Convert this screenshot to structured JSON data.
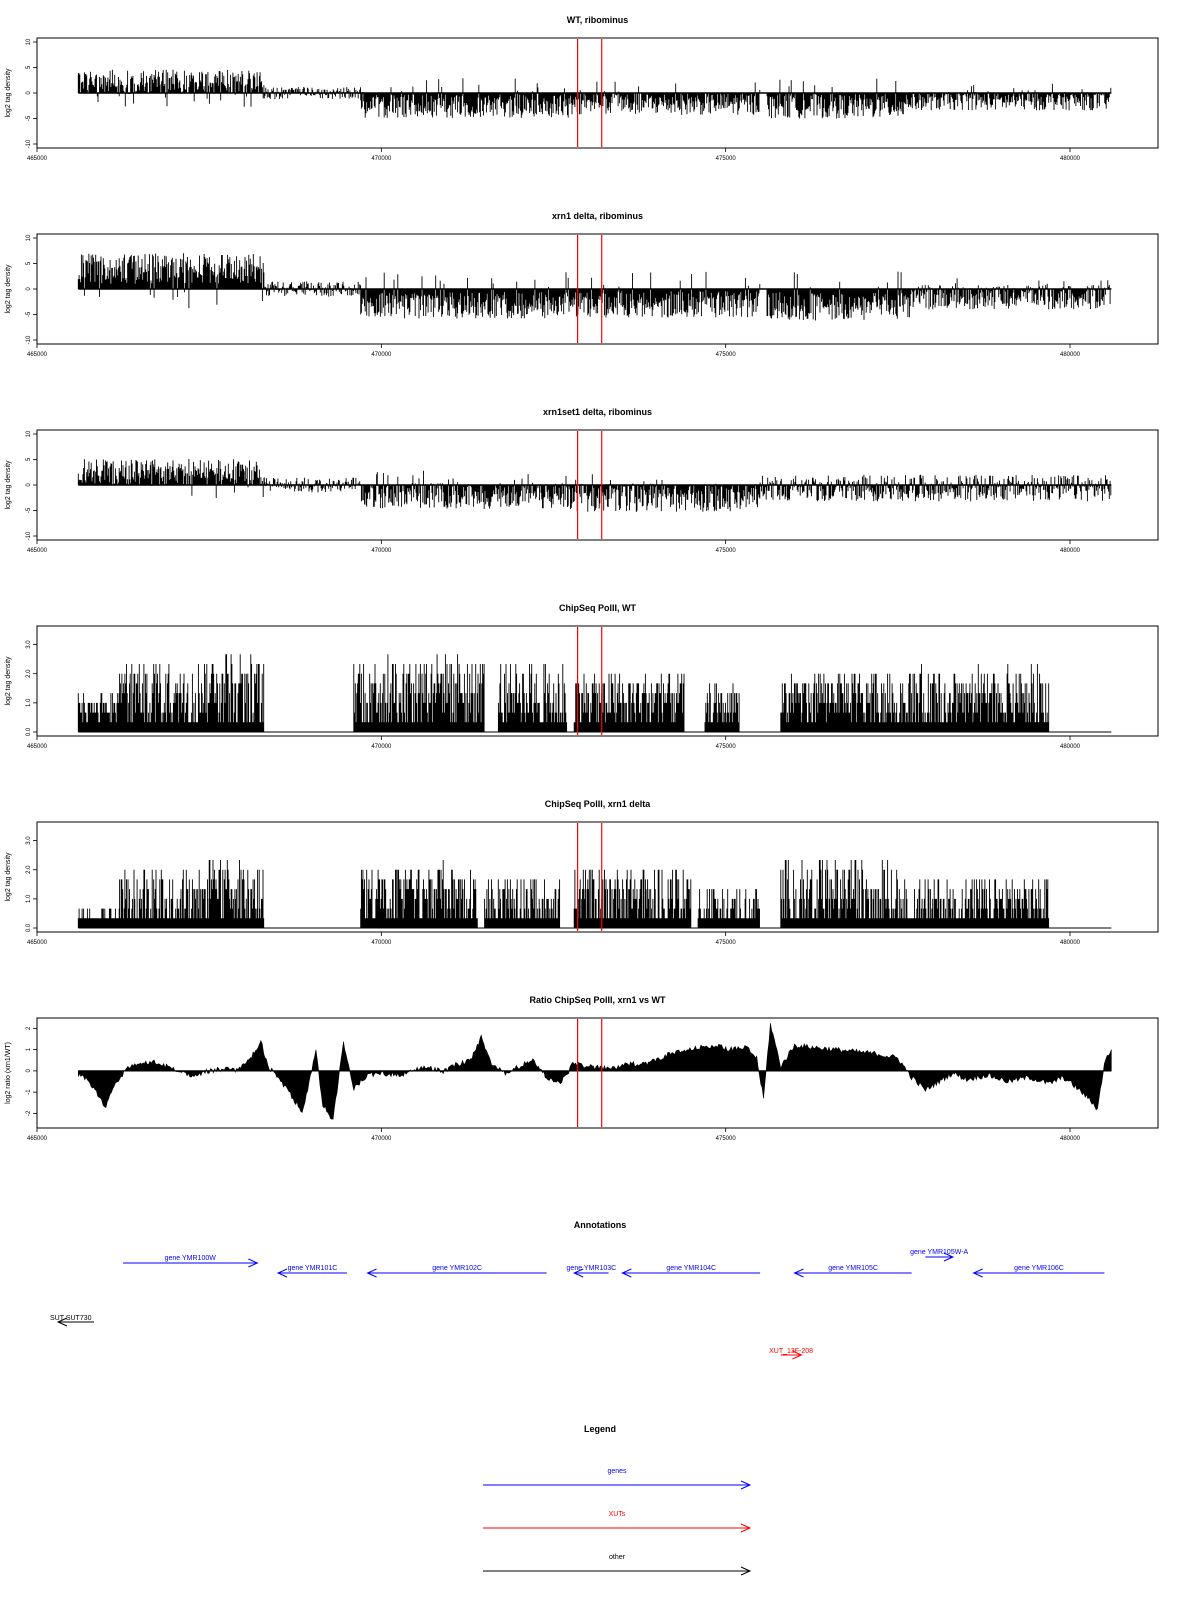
{
  "chart_data": [
    {
      "type": "bar",
      "title": "WT, ribominus",
      "ylabel": "log2 tag density",
      "xlabel": "",
      "xlim": [
        465000,
        480500
      ],
      "ylim": [
        -10,
        10
      ],
      "yticks": [
        10,
        5,
        0,
        -5,
        -10
      ],
      "xticks": [
        465000,
        470000,
        475000,
        480000
      ],
      "grid": false,
      "marker_lines": [
        472850,
        473200
      ],
      "segments": [
        {
          "start": 465600,
          "end": 468300,
          "mean": 2.2,
          "amp": 2.4
        },
        {
          "start": 468300,
          "end": 469700,
          "mean": 0.0,
          "amp": 1.2
        },
        {
          "start": 469700,
          "end": 472800,
          "mean": -2.6,
          "amp": 2.3
        },
        {
          "start": 472800,
          "end": 475500,
          "mean": -2.1,
          "amp": 2.2
        },
        {
          "start": 475600,
          "end": 477600,
          "mean": -2.6,
          "amp": 2.4
        },
        {
          "start": 477600,
          "end": 480600,
          "mean": -1.6,
          "amp": 1.8
        }
      ]
    },
    {
      "type": "bar",
      "title": "xrn1 delta, ribominus",
      "ylabel": "log2 tag density",
      "xlabel": "",
      "xlim": [
        465000,
        480500
      ],
      "ylim": [
        -10,
        10
      ],
      "yticks": [
        10,
        5,
        0,
        -5,
        -10
      ],
      "xticks": [
        465000,
        470000,
        475000,
        480000
      ],
      "grid": false,
      "marker_lines": [
        472850,
        473200
      ],
      "segments": [
        {
          "start": 465600,
          "end": 468300,
          "mean": 4.0,
          "amp": 3.0
        },
        {
          "start": 468300,
          "end": 469700,
          "mean": 0.0,
          "amp": 1.5
        },
        {
          "start": 469700,
          "end": 472800,
          "mean": -3.2,
          "amp": 2.6
        },
        {
          "start": 472800,
          "end": 475500,
          "mean": -3.0,
          "amp": 2.6
        },
        {
          "start": 475600,
          "end": 477700,
          "mean": -3.4,
          "amp": 2.8
        },
        {
          "start": 477700,
          "end": 480600,
          "mean": -1.6,
          "amp": 2.4
        }
      ]
    },
    {
      "type": "bar",
      "title": "xrn1set1 delta, ribominus",
      "ylabel": "log2 tag density",
      "xlabel": "",
      "xlim": [
        465000,
        480500
      ],
      "ylim": [
        -10,
        10
      ],
      "yticks": [
        10,
        5,
        0,
        -5,
        -10
      ],
      "xticks": [
        465000,
        470000,
        475000,
        480000
      ],
      "grid": false,
      "marker_lines": [
        472850,
        473200
      ],
      "segments": [
        {
          "start": 465600,
          "end": 468300,
          "mean": 2.5,
          "amp": 2.6
        },
        {
          "start": 468300,
          "end": 469700,
          "mean": 0.0,
          "amp": 1.5
        },
        {
          "start": 469700,
          "end": 472800,
          "mean": -2.2,
          "amp": 2.6
        },
        {
          "start": 472800,
          "end": 475500,
          "mean": -2.5,
          "amp": 2.8
        },
        {
          "start": 475500,
          "end": 480600,
          "mean": -0.6,
          "amp": 2.6
        }
      ]
    },
    {
      "type": "bar",
      "title": "ChipSeq PolII, WT",
      "ylabel": "log2 tag density",
      "xlabel": "",
      "xlim": [
        465000,
        480500
      ],
      "ylim": [
        0,
        3.5
      ],
      "yticks": [
        0.0,
        1.0,
        2.0,
        3.0
      ],
      "xticks": [
        465000,
        470000,
        475000,
        480000
      ],
      "grid": false,
      "marker_lines": [
        472850,
        473200
      ],
      "segments": [
        {
          "start": 465600,
          "end": 466200,
          "mean": 0.9,
          "amp": 0.4
        },
        {
          "start": 466200,
          "end": 467500,
          "mean": 1.5,
          "amp": 1.0
        },
        {
          "start": 467500,
          "end": 468300,
          "mean": 1.8,
          "amp": 1.0
        },
        {
          "start": 469600,
          "end": 471500,
          "mean": 1.6,
          "amp": 1.0
        },
        {
          "start": 471700,
          "end": 472700,
          "mean": 1.4,
          "amp": 1.0
        },
        {
          "start": 472800,
          "end": 474400,
          "mean": 1.2,
          "amp": 0.8
        },
        {
          "start": 474700,
          "end": 475200,
          "mean": 1.0,
          "amp": 0.6
        },
        {
          "start": 475800,
          "end": 477700,
          "mean": 1.3,
          "amp": 0.8
        },
        {
          "start": 477700,
          "end": 479700,
          "mean": 1.3,
          "amp": 0.9
        }
      ]
    },
    {
      "type": "bar",
      "title": "ChipSeq PolII, xrn1 delta",
      "ylabel": "log2 tag density",
      "xlabel": "",
      "xlim": [
        465000,
        480500
      ],
      "ylim": [
        0,
        3.5
      ],
      "yticks": [
        0.0,
        1.0,
        2.0,
        3.0
      ],
      "xticks": [
        465000,
        470000,
        475000,
        480000
      ],
      "grid": false,
      "marker_lines": [
        472850,
        473200
      ],
      "segments": [
        {
          "start": 465600,
          "end": 466200,
          "mean": 0.4,
          "amp": 0.4
        },
        {
          "start": 466200,
          "end": 467500,
          "mean": 1.1,
          "amp": 0.9
        },
        {
          "start": 467500,
          "end": 468300,
          "mean": 1.6,
          "amp": 0.9
        },
        {
          "start": 469700,
          "end": 471400,
          "mean": 1.3,
          "amp": 0.9
        },
        {
          "start": 471500,
          "end": 472600,
          "mean": 1.0,
          "amp": 0.8
        },
        {
          "start": 472800,
          "end": 474500,
          "mean": 1.2,
          "amp": 0.9
        },
        {
          "start": 474600,
          "end": 475500,
          "mean": 0.8,
          "amp": 0.6
        },
        {
          "start": 475800,
          "end": 477500,
          "mean": 1.4,
          "amp": 1.0
        },
        {
          "start": 477500,
          "end": 479700,
          "mean": 0.9,
          "amp": 0.8
        }
      ]
    },
    {
      "type": "area",
      "title": "Ratio ChipSeq PolII, xrn1 vs WT",
      "ylabel": "log2 ratio (xrn1/WT)",
      "xlabel": "",
      "xlim": [
        465000,
        480500
      ],
      "ylim": [
        -2.5,
        2.3
      ],
      "yticks": [
        2,
        1,
        0,
        -1,
        -2
      ],
      "xticks": [
        465000,
        470000,
        475000,
        480000
      ],
      "grid": false,
      "marker_lines": [
        472850,
        473200
      ],
      "points": [
        [
          465600,
          -0.2
        ],
        [
          465750,
          -0.5
        ],
        [
          465900,
          -1.2
        ],
        [
          466000,
          -1.7
        ],
        [
          466100,
          -0.8
        ],
        [
          466300,
          0.1
        ],
        [
          466500,
          0.3
        ],
        [
          466700,
          0.4
        ],
        [
          466900,
          0.2
        ],
        [
          467100,
          -0.1
        ],
        [
          467300,
          -0.2
        ],
        [
          467500,
          0.0
        ],
        [
          467700,
          0.1
        ],
        [
          467900,
          0.0
        ],
        [
          468100,
          0.6
        ],
        [
          468250,
          1.4
        ],
        [
          468350,
          0.2
        ],
        [
          468500,
          -0.3
        ],
        [
          468700,
          -1.2
        ],
        [
          468850,
          -1.9
        ],
        [
          468950,
          -0.6
        ],
        [
          469050,
          1.0
        ],
        [
          469150,
          -1.6
        ],
        [
          469300,
          -2.3
        ],
        [
          469450,
          1.3
        ],
        [
          469600,
          -0.8
        ],
        [
          469800,
          -0.2
        ],
        [
          470000,
          -0.1
        ],
        [
          470300,
          -0.2
        ],
        [
          470600,
          0.2
        ],
        [
          470900,
          0.0
        ],
        [
          471100,
          0.3
        ],
        [
          471300,
          0.5
        ],
        [
          471450,
          1.6
        ],
        [
          471600,
          0.3
        ],
        [
          471800,
          -0.1
        ],
        [
          472000,
          0.2
        ],
        [
          472200,
          0.5
        ],
        [
          472400,
          -0.3
        ],
        [
          472600,
          -0.6
        ],
        [
          472800,
          0.4
        ],
        [
          473000,
          0.2
        ],
        [
          473300,
          0.1
        ],
        [
          473600,
          0.3
        ],
        [
          473900,
          0.4
        ],
        [
          474200,
          0.8
        ],
        [
          474500,
          1.0
        ],
        [
          474800,
          1.2
        ],
        [
          475100,
          1.0
        ],
        [
          475300,
          1.1
        ],
        [
          475450,
          0.6
        ],
        [
          475550,
          -1.3
        ],
        [
          475650,
          2.2
        ],
        [
          475800,
          0.2
        ],
        [
          476000,
          1.2
        ],
        [
          476300,
          1.1
        ],
        [
          476600,
          1.0
        ],
        [
          476900,
          0.9
        ],
        [
          477200,
          0.8
        ],
        [
          477500,
          0.6
        ],
        [
          477700,
          -0.3
        ],
        [
          477900,
          -0.9
        ],
        [
          478100,
          -0.5
        ],
        [
          478300,
          -0.1
        ],
        [
          478500,
          -0.4
        ],
        [
          478800,
          -0.2
        ],
        [
          479100,
          -0.5
        ],
        [
          479400,
          -0.3
        ],
        [
          479700,
          -0.6
        ],
        [
          479900,
          -0.3
        ],
        [
          480100,
          -0.8
        ],
        [
          480300,
          -1.4
        ],
        [
          480400,
          -1.8
        ],
        [
          480500,
          0.4
        ],
        [
          480600,
          1.0
        ]
      ]
    }
  ],
  "annotations": {
    "title": "Annotations",
    "genes": [
      {
        "label": "gene YMR100W",
        "start": 466250,
        "end": 468200,
        "strand": "+"
      },
      {
        "label": "gene YMR101C",
        "start": 468500,
        "end": 469500,
        "strand": "-"
      },
      {
        "label": "gene YMR102C",
        "start": 469800,
        "end": 472400,
        "strand": "-"
      },
      {
        "label": "gene YMR103C",
        "start": 472800,
        "end": 473300,
        "strand": "-"
      },
      {
        "label": "gene YMR104C",
        "start": 473500,
        "end": 475500,
        "strand": "-"
      },
      {
        "label": "gene YMR105C",
        "start": 476000,
        "end": 477700,
        "strand": "-"
      },
      {
        "label": "gene YMR105W-A",
        "start": 477900,
        "end": 478300,
        "strand": "+"
      },
      {
        "label": "gene YMR106C",
        "start": 478600,
        "end": 480500,
        "strand": "-"
      }
    ],
    "xuts": [
      {
        "label": "XUT_13F-208",
        "start": 475800,
        "end": 476100,
        "strand": "+"
      }
    ],
    "other": [
      {
        "label": "SUT SUT730",
        "start": 465300,
        "end": 465800,
        "strand": "-"
      }
    ]
  },
  "legend": {
    "title": "Legend",
    "items": [
      {
        "label": "genes",
        "color": "#0000ff"
      },
      {
        "label": "XUTs",
        "color": "#ff0000"
      },
      {
        "label": "other",
        "color": "#000000"
      }
    ]
  },
  "colors": {
    "gene": "#0000ff",
    "xut": "#ff0000",
    "other": "#000000",
    "marker": "#ff0000"
  }
}
